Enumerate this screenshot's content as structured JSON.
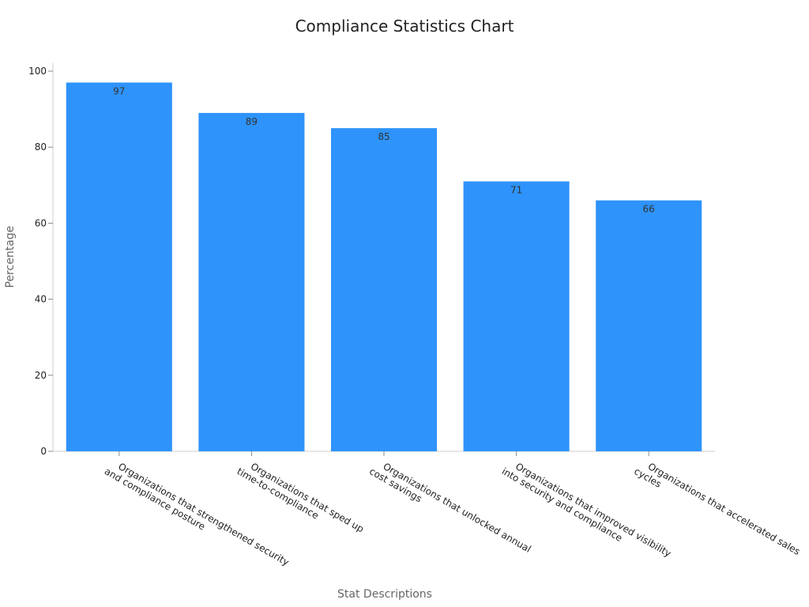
{
  "chart_data": {
    "type": "bar",
    "title": "Compliance Statistics Chart",
    "x_label": "Stat Descriptions",
    "y_label": "Percentage",
    "categories": [
      "Organizations that strengthened security\nand compliance posture",
      "Organizations that sped up\ntime-to-compliance",
      "Organizations that unlocked annual\ncost savings",
      "Organizations that improved visibility\ninto security and compliance",
      "Organizations that accelerated sales\ncycles"
    ],
    "values": [
      97,
      89,
      85,
      71,
      66
    ],
    "color": "#2e93fa",
    "ylim": [
      0,
      100
    ],
    "yticks": [
      0,
      20,
      40,
      60,
      80,
      100
    ],
    "grid": false
  }
}
